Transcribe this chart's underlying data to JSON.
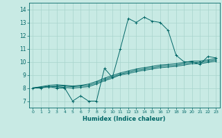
{
  "title": "",
  "xlabel": "Humidex (Indice chaleur)",
  "xlim": [
    -0.5,
    23.5
  ],
  "ylim": [
    6.5,
    14.5
  ],
  "xticks": [
    0,
    1,
    2,
    3,
    4,
    5,
    6,
    7,
    8,
    9,
    10,
    11,
    12,
    13,
    14,
    15,
    16,
    17,
    18,
    19,
    20,
    21,
    22,
    23
  ],
  "yticks": [
    7,
    8,
    9,
    10,
    11,
    12,
    13,
    14
  ],
  "bg_color": "#c8eae4",
  "line_color": "#006666",
  "grid_color": "#a8d4cc",
  "x": [
    0,
    1,
    2,
    3,
    4,
    5,
    6,
    7,
    8,
    9,
    10,
    11,
    12,
    13,
    14,
    15,
    16,
    17,
    18,
    19,
    20,
    21,
    22,
    23
  ],
  "series1": [
    8.0,
    8.0,
    8.1,
    8.0,
    8.0,
    7.0,
    7.4,
    7.0,
    7.0,
    9.5,
    8.8,
    11.0,
    13.3,
    13.0,
    13.4,
    13.1,
    13.0,
    12.4,
    10.5,
    10.0,
    10.0,
    9.8,
    10.4,
    10.3
  ],
  "series2": [
    8.0,
    8.05,
    8.1,
    8.1,
    8.05,
    8.0,
    8.05,
    8.1,
    8.3,
    8.55,
    8.75,
    9.0,
    9.1,
    9.25,
    9.35,
    9.45,
    9.55,
    9.6,
    9.65,
    9.75,
    9.85,
    9.85,
    9.95,
    10.05
  ],
  "series3": [
    8.0,
    8.05,
    8.1,
    8.15,
    8.15,
    8.1,
    8.15,
    8.2,
    8.4,
    8.65,
    8.85,
    9.05,
    9.2,
    9.35,
    9.45,
    9.55,
    9.65,
    9.7,
    9.75,
    9.85,
    9.95,
    9.95,
    10.05,
    10.15
  ],
  "series4": [
    8.0,
    8.1,
    8.2,
    8.25,
    8.2,
    8.15,
    8.2,
    8.3,
    8.5,
    8.75,
    8.95,
    9.15,
    9.3,
    9.45,
    9.55,
    9.65,
    9.75,
    9.8,
    9.85,
    9.95,
    10.05,
    10.05,
    10.15,
    10.25
  ]
}
